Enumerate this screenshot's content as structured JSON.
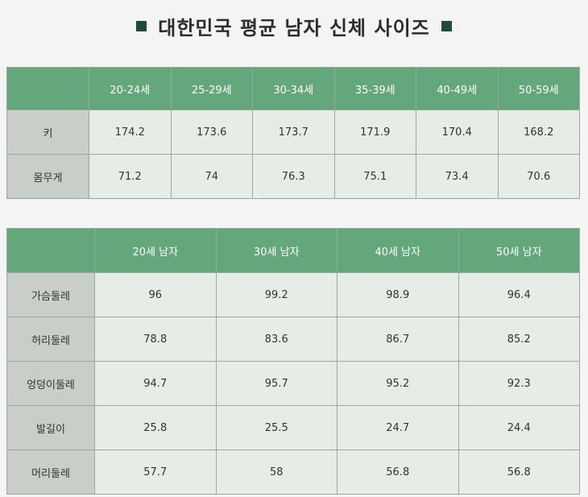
{
  "title": "대한민국 평균 남자 신체 사이즈",
  "table1": {
    "columns": [
      "20-24세",
      "25-29세",
      "30-34세",
      "35-39세",
      "40-49세",
      "50-59세"
    ],
    "rows": [
      {
        "label": "키",
        "values": [
          "174.2",
          "173.6",
          "173.7",
          "171.9",
          "170.4",
          "168.2"
        ]
      },
      {
        "label": "몸무게",
        "values": [
          "71.2",
          "74",
          "76.3",
          "75.1",
          "73.4",
          "70.6"
        ]
      }
    ]
  },
  "table2": {
    "columns": [
      "20세 남자",
      "30세 남자",
      "40세 남자",
      "50세 남자"
    ],
    "rows": [
      {
        "label": "가슴둘레",
        "values": [
          "96",
          "99.2",
          "98.9",
          "96.4"
        ]
      },
      {
        "label": "허리둘레",
        "values": [
          "78.8",
          "83.6",
          "86.7",
          "85.2"
        ]
      },
      {
        "label": "엉덩이둘레",
        "values": [
          "94.7",
          "95.7",
          "95.2",
          "92.3"
        ]
      },
      {
        "label": "발길이",
        "values": [
          "25.8",
          "25.5",
          "24.7",
          "24.4"
        ]
      },
      {
        "label": "머리둘레",
        "values": [
          "57.7",
          "58",
          "56.8",
          "56.8"
        ]
      }
    ]
  },
  "colors": {
    "header": "#63a77a",
    "cell": "#e6ece6",
    "row_label": "#c9cec9",
    "title_square": "#1f4a36"
  }
}
